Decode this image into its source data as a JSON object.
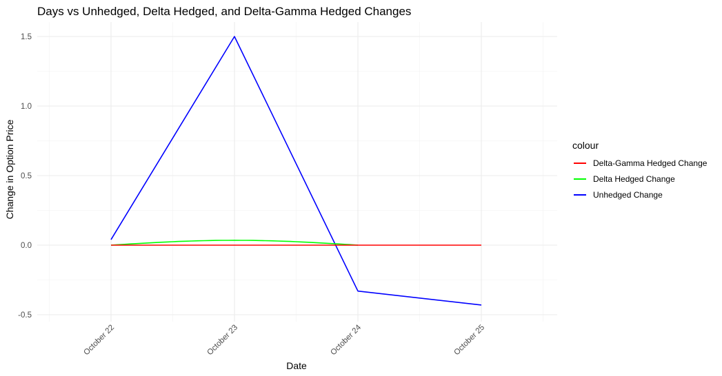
{
  "chart_data": {
    "type": "line",
    "title": "Days vs Unhedged, Delta Hedged, and Delta-Gamma Hedged Changes",
    "xlabel": "Date",
    "ylabel": "Change in Option Price",
    "x_ticks": [
      "October 22",
      "October 23",
      "October 24",
      "October 25"
    ],
    "y_ticks": [
      "-0.5",
      "0.0",
      "0.5",
      "1.0",
      "1.5"
    ],
    "ylim": [
      -0.55,
      1.6
    ],
    "grid": true,
    "legend_title": "colour",
    "legend_position": "right",
    "series": [
      {
        "name": "Delta-Gamma Hedged Change",
        "color": "#ff0000",
        "x": [
          "October 22",
          "October 23",
          "October 24",
          "October 25"
        ],
        "values": [
          0.0,
          0.0,
          0.0,
          0.0
        ]
      },
      {
        "name": "Delta Hedged Change",
        "color": "#00ff00",
        "x": [
          "October 22",
          "October 23",
          "October 24"
        ],
        "values": [
          0.0,
          0.035,
          0.0
        ]
      },
      {
        "name": "Unhedged Change",
        "color": "#0000ff",
        "x": [
          "October 22",
          "October 23",
          "October 24",
          "October 25"
        ],
        "values": [
          0.04,
          1.5,
          -0.33,
          -0.43
        ]
      }
    ]
  }
}
